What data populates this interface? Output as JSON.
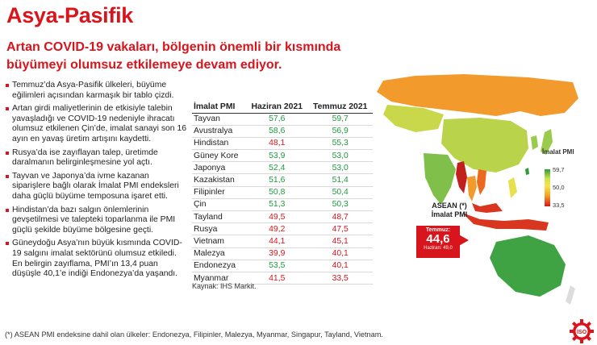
{
  "page": {
    "title": "Asya-Pasifik",
    "headline": "Artan COVID-19 vakaları, bölgenin önemli bir kısmında büyümeyi olumsuz etkilemeye devam ediyor."
  },
  "bullets": [
    "Temmuz’da Asya-Pasifik ülkeleri, büyüme eğilimleri açısından karmaşık bir tablo çizdi.",
    "Artan girdi maliyetlerinin de etkisiyle talebin yavaşladığı ve COVID-19 nedeniyle ihracatı olumsuz etkilenen Çin’de, imalat sanayi son 16 ayın en yavaş üretim artışını kaydetti.",
    "Rusya’da ise zayıflayan talep, üretimde daralmanın belirginleşmesine yol açtı.",
    "Tayvan ve Japonya’da ivme kazanan siparişlere bağlı olarak İmalat PMI endeksleri daha güçlü büyüme temposuna işaret etti.",
    "Hindistan’da bazı salgın önlemlerinin gevşetilmesi ve talepteki toparlanma ile PMI güçlü şekilde büyüme bölgesine geçti.",
    "Güneydoğu Asya’nın büyük kısmında COVID-19 salgını imalat sektörünü olumsuz etkiledi. En belirgin zayıflama, PMI’ın 13,4 puan düşüşle 40,1’e indiği Endonezya’da yaşandı."
  ],
  "table": {
    "headers": [
      "İmalat PMI",
      "Haziran 2021",
      "Temmuz 2021"
    ],
    "rows": [
      {
        "country": "Tayvan",
        "jun": "57,6",
        "jul": "59,7",
        "jun_dir": "up",
        "jul_dir": "up"
      },
      {
        "country": "Avustralya",
        "jun": "58,6",
        "jul": "56,9",
        "jun_dir": "up",
        "jul_dir": "up"
      },
      {
        "country": "Hindistan",
        "jun": "48,1",
        "jul": "55,3",
        "jun_dir": "down",
        "jul_dir": "up"
      },
      {
        "country": "Güney Kore",
        "jun": "53,9",
        "jul": "53,0",
        "jun_dir": "up",
        "jul_dir": "up"
      },
      {
        "country": "Japonya",
        "jun": "52,4",
        "jul": "53,0",
        "jun_dir": "up",
        "jul_dir": "up"
      },
      {
        "country": "Kazakistan",
        "jun": "51,6",
        "jul": "51,4",
        "jun_dir": "up",
        "jul_dir": "up"
      },
      {
        "country": "Filipinler",
        "jun": "50,8",
        "jul": "50,4",
        "jun_dir": "up",
        "jul_dir": "up"
      },
      {
        "country": "Çin",
        "jun": "51,3",
        "jul": "50,3",
        "jun_dir": "up",
        "jul_dir": "up"
      },
      {
        "country": "Tayland",
        "jun": "49,5",
        "jul": "48,7",
        "jun_dir": "down",
        "jul_dir": "down"
      },
      {
        "country": "Rusya",
        "jun": "49,2",
        "jul": "47,5",
        "jun_dir": "down",
        "jul_dir": "down"
      },
      {
        "country": "Vietnam",
        "jun": "44,1",
        "jul": "45,1",
        "jun_dir": "down",
        "jul_dir": "down"
      },
      {
        "country": "Malezya",
        "jun": "39,9",
        "jul": "40,1",
        "jun_dir": "down",
        "jul_dir": "down"
      },
      {
        "country": "Endonezya",
        "jun": "53,5",
        "jul": "40,1",
        "jun_dir": "up",
        "jul_dir": "down"
      },
      {
        "country": "Myanmar",
        "jun": "41,5",
        "jul": "33,5",
        "jun_dir": "down",
        "jul_dir": "down"
      }
    ],
    "source": "Kaynak: IHS Markit."
  },
  "map_panel": {
    "legend_title": "İmalat PMI",
    "legend_max": "59,7",
    "legend_mid": "50,0",
    "legend_min": "33,5",
    "asean_label": "ASEAN (*)",
    "asean_sublabel": "İmalat PMI",
    "asean_month": "Temmuz:",
    "asean_value": "44,6",
    "asean_prev": "Haziran: 49,0"
  },
  "footnote": "(*) ASEAN PMI endeksine dahil olan ülkeler: Endonezya, Filipinler, Malezya, Myanmar, Singapur, Tayland, Vietnam.",
  "colors": {
    "accent_red": "#d8151c",
    "positive_green": "#1e9b3c"
  },
  "logo": {
    "text": "İSO",
    "icon": "gear-icon"
  }
}
